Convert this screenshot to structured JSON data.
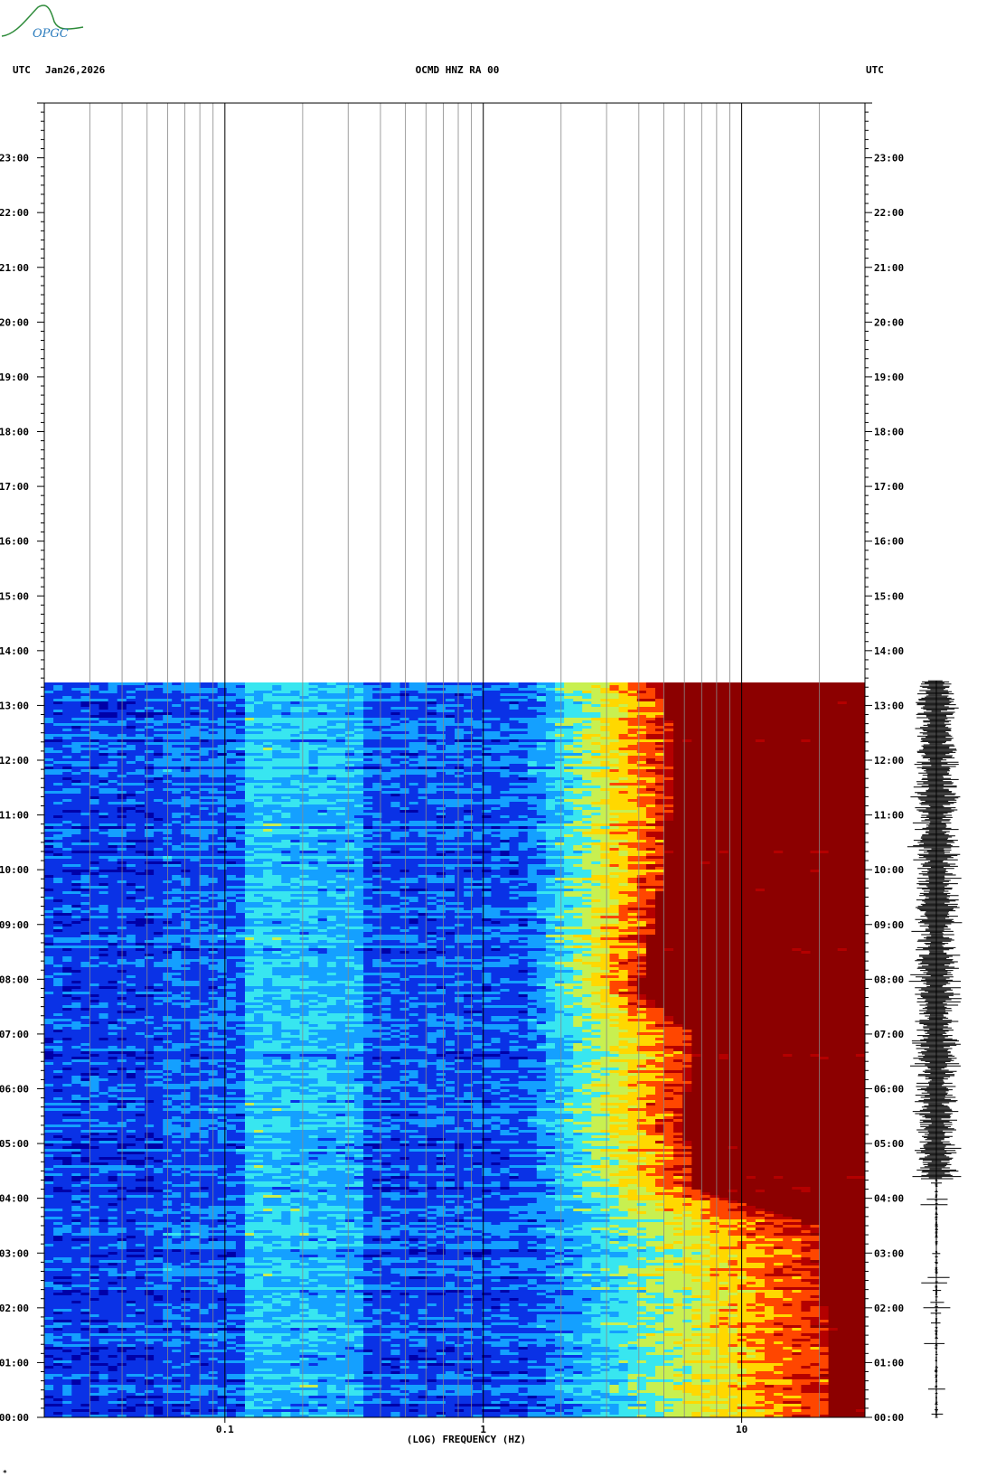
{
  "logo": {
    "text": "OPGC",
    "mark": "mountain-curve-icon"
  },
  "header": {
    "left_tz": "UTC",
    "date": "Jan26,2026",
    "station": "OCMD HNZ RA 00",
    "right_tz": "UTC"
  },
  "footer_mark": "*",
  "colors": {
    "spectrogram": [
      "#0000a8",
      "#0a32e6",
      "#14a0ff",
      "#38e6f0",
      "#c8f050",
      "#ffd800",
      "#ff4600",
      "#b40000",
      "#8c0000"
    ],
    "grid": "#888888",
    "decade_grid": "#000000"
  },
  "chart_data": {
    "type": "heatmap",
    "title": "OCMD HNZ RA 00",
    "xlabel": "(LOG) FREQUENCY (HZ)",
    "x_scale": "log",
    "xlim": [
      0.02,
      30
    ],
    "x_ticks": [
      {
        "value": 0.1,
        "label": "0.1"
      },
      {
        "value": 1,
        "label": "1"
      },
      {
        "value": 10,
        "label": "10"
      }
    ],
    "ylabel": "UTC",
    "ylim_hours": [
      0,
      24
    ],
    "y_ticks": [
      "00:00",
      "01:00",
      "02:00",
      "03:00",
      "04:00",
      "05:00",
      "06:00",
      "07:00",
      "08:00",
      "09:00",
      "10:00",
      "11:00",
      "12:00",
      "13:00",
      "14:00",
      "15:00",
      "16:00",
      "17:00",
      "18:00",
      "19:00",
      "20:00",
      "21:00",
      "22:00",
      "23:00"
    ],
    "data_end_hour": 13.45,
    "noise_floor_freq_hz": 1.4,
    "high_energy_boundary": [
      {
        "hour": 0.0,
        "freq_hz": 22
      },
      {
        "hour": 3.5,
        "freq_hz": 20
      },
      {
        "hour": 4.2,
        "freq_hz": 6.5
      },
      {
        "hour": 5.5,
        "freq_hz": 6
      },
      {
        "hour": 7.0,
        "freq_hz": 6.5
      },
      {
        "hour": 7.8,
        "freq_hz": 4
      },
      {
        "hour": 10.0,
        "freq_hz": 5
      },
      {
        "hour": 12.0,
        "freq_hz": 5.5
      },
      {
        "hour": 13.45,
        "freq_hz": 5
      }
    ],
    "seismogram": {
      "start_hour": 0,
      "end_hour": 13.45,
      "strong_from_hour": 4.35
    }
  }
}
